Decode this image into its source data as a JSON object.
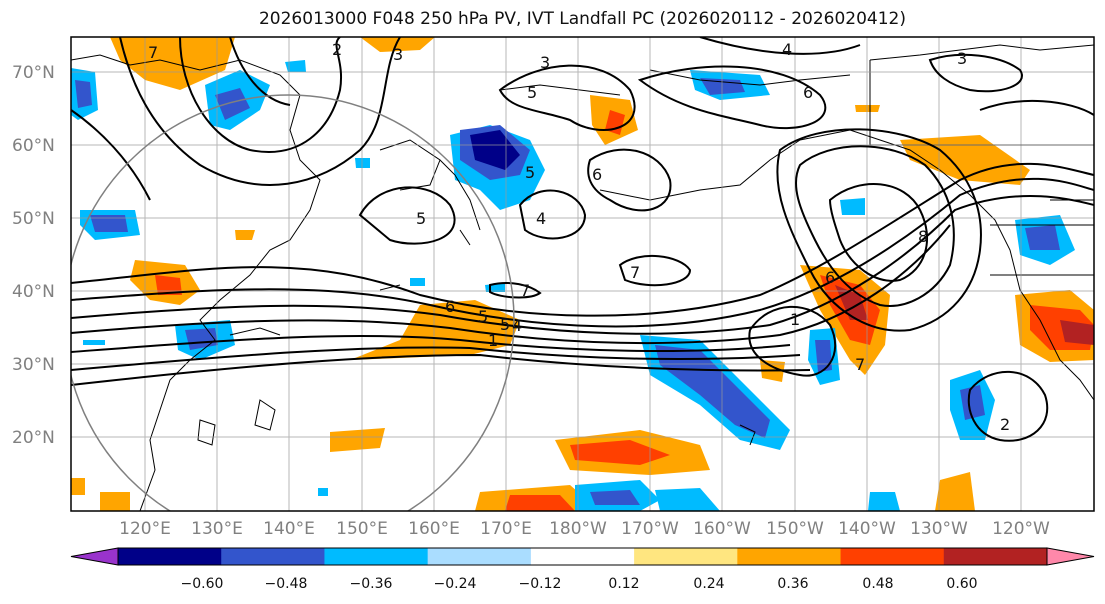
{
  "title": "2026013000 F048 250 hPa PV, IVT Landfall PC (2026020112 - 2026020412)",
  "map": {
    "lat_labels": [
      "70°N",
      "60°N",
      "50°N",
      "40°N",
      "30°N",
      "20°N"
    ],
    "lon_labels": [
      "120°E",
      "130°E",
      "140°E",
      "150°E",
      "160°E",
      "170°E",
      "180°W",
      "170°W",
      "160°W",
      "150°W",
      "140°W",
      "130°W",
      "120°W"
    ],
    "contour_labels": [
      "2",
      "3",
      "3",
      "3",
      "4",
      "6",
      "5",
      "5",
      "5",
      "5",
      "4",
      "6",
      "7",
      "7",
      "6",
      "5",
      "4",
      "1",
      "6",
      "8",
      "7",
      "7",
      "1",
      "2"
    ]
  },
  "colorbar": {
    "tick_labels": [
      "−0.60",
      "−0.48",
      "−0.36",
      "−0.24",
      "−0.12",
      "0.12",
      "0.24",
      "0.36",
      "0.48",
      "0.60"
    ],
    "colors": [
      "#9933cc",
      "#000088",
      "#3355cc",
      "#00bbff",
      "#aaddff",
      "#ffffff",
      "#ffe680",
      "#ffa500",
      "#ff4000",
      "#b22222",
      "#ff88aa"
    ]
  }
}
